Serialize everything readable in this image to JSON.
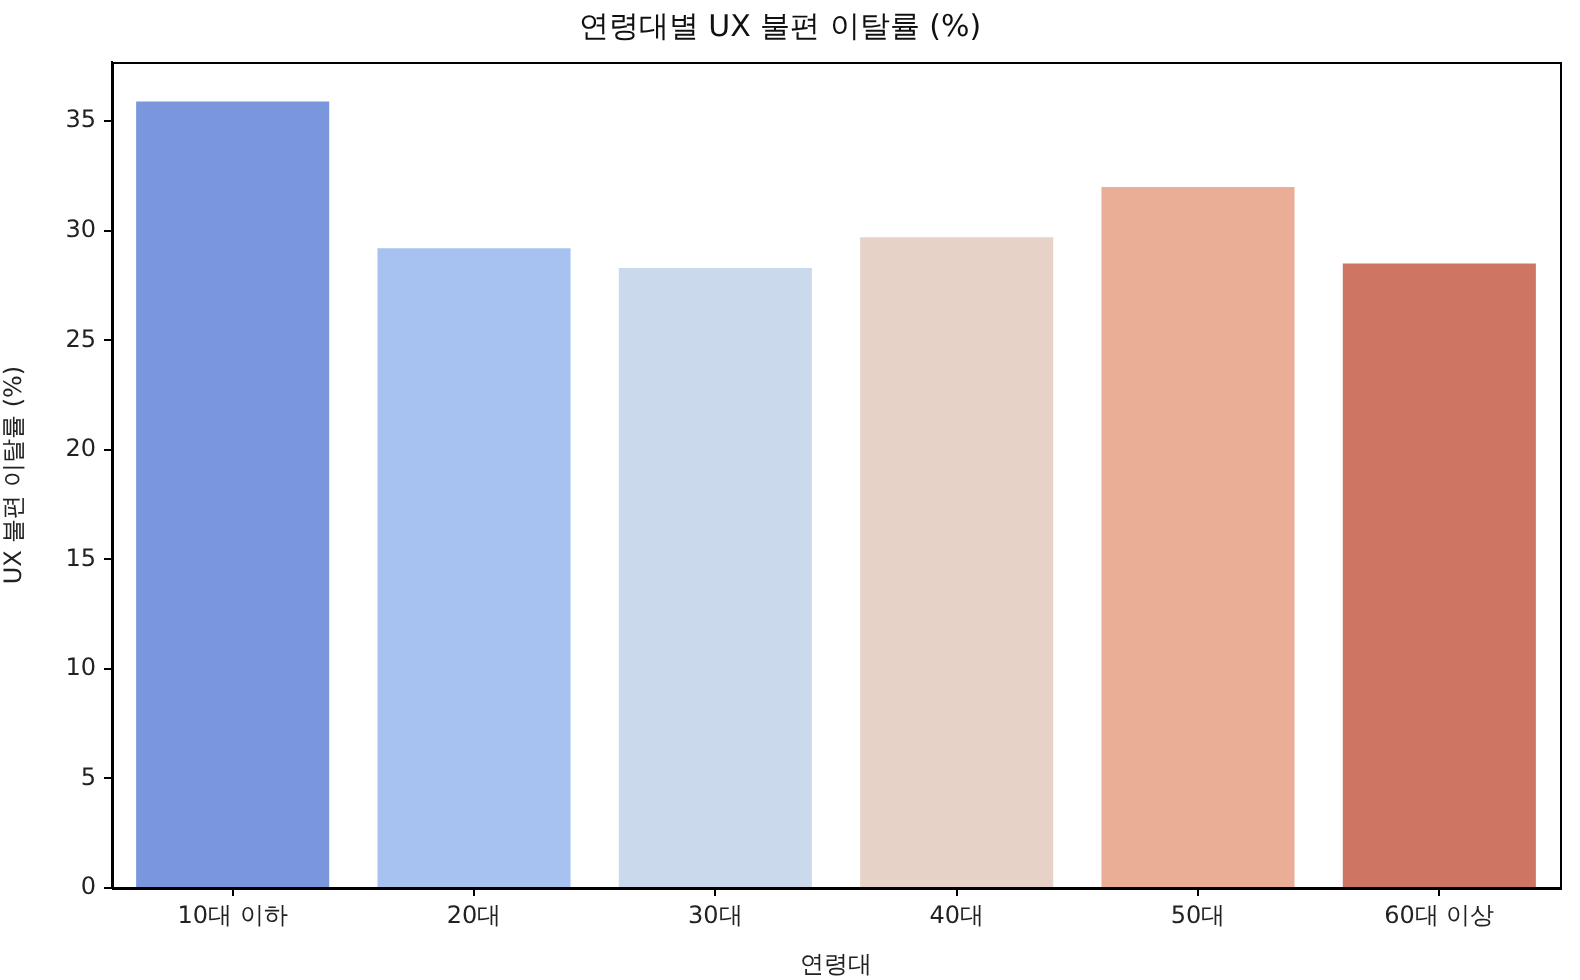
{
  "chart_data": {
    "type": "bar",
    "title": "연령대별 UX 불편 이탈률 (%)",
    "xlabel": "연령대",
    "ylabel": "UX 불편 이탈률 (%)",
    "categories": [
      "10대 이하",
      "20대",
      "30대",
      "40대",
      "50대",
      "60대 이상"
    ],
    "values": [
      35.9,
      29.2,
      28.3,
      29.7,
      32.0,
      28.5
    ],
    "colors": [
      "#7a96dd",
      "#a7c2f1",
      "#cbd9ec",
      "#e6d2c7",
      "#e9ae95",
      "#ce7663"
    ],
    "ylim": [
      0,
      37.7
    ],
    "yticks": [
      0,
      5,
      10,
      15,
      20,
      25,
      30,
      35
    ],
    "grid": false,
    "legend": false
  }
}
